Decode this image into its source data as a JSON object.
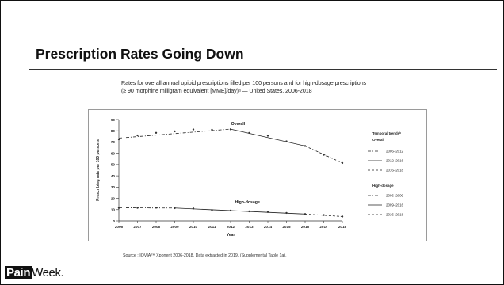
{
  "slide": {
    "title": "Prescription Rates Going Down",
    "chart_caption_line1": "Rates for overall annual opioid prescriptions filled per 100 persons and for high-dosage prescriptions",
    "chart_caption_line2": "(≥ 90 morphine milligram equivalent [MME]/day)ᵃ — United States, 2006-2018",
    "source": "Source : IQVIA™ Xponent 2006-2018. Data extracted in 2019. (Supplemental Table 1a).",
    "logo": {
      "part1": "Pain",
      "part2": "Week."
    }
  },
  "chart_data": {
    "type": "line",
    "xlabel": "Year",
    "ylabel": "Prescribing rate per 100 persons",
    "x": [
      2006,
      2007,
      2008,
      2009,
      2010,
      2011,
      2012,
      2013,
      2014,
      2015,
      2016,
      2017,
      2018
    ],
    "xlim": [
      2006,
      2018
    ],
    "ylim": [
      0,
      90
    ],
    "yticks": [
      0,
      10,
      20,
      30,
      40,
      50,
      60,
      70,
      80,
      90
    ],
    "grid": false,
    "legend_placement": "right",
    "series": [
      {
        "name": "Overall",
        "values": [
          72.4,
          75.9,
          78.2,
          79.5,
          81.2,
          80.9,
          81.3,
          78.1,
          75.6,
          70.6,
          66.5,
          58.7,
          51.4
        ]
      },
      {
        "name": "High-dosage",
        "values": [
          11.5,
          11.6,
          11.7,
          11.3,
          11.0,
          9.6,
          9.2,
          8.5,
          7.9,
          7.1,
          6.1,
          5.2,
          3.9
        ]
      }
    ],
    "trends": {
      "heading": "Temporal trendsᵇ",
      "overall": {
        "label": "Overall",
        "segments": [
          {
            "label": "2006–2012",
            "style": "dash-dot",
            "start": 2006,
            "end": 2012,
            "y_start": 73.5,
            "y_end": 81.5
          },
          {
            "label": "2012–2016",
            "style": "solid",
            "start": 2012,
            "end": 2016,
            "y_start": 81.5,
            "y_end": 66.5
          },
          {
            "label": "2016–2018",
            "style": "dashed",
            "start": 2016,
            "end": 2018,
            "y_start": 66.5,
            "y_end": 51.4
          }
        ]
      },
      "high": {
        "label": "High-dosage",
        "segments": [
          {
            "label": "2006–2009",
            "style": "dash-dot",
            "start": 2006,
            "end": 2009,
            "y_start": 11.6,
            "y_end": 11.4
          },
          {
            "label": "2009–2016",
            "style": "solid",
            "start": 2009,
            "end": 2016,
            "y_start": 11.4,
            "y_end": 6.1
          },
          {
            "label": "2016–2018",
            "style": "dashed",
            "start": 2016,
            "end": 2018,
            "y_start": 6.1,
            "y_end": 3.9
          }
        ]
      }
    },
    "annotations": [
      {
        "text": "Overall",
        "series": "Overall"
      },
      {
        "text": "High-dosage",
        "series": "High-dosage"
      }
    ]
  }
}
